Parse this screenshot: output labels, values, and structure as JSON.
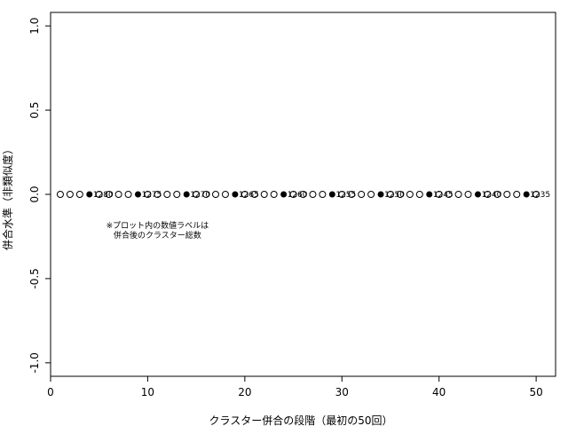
{
  "chart_data": {
    "type": "scatter",
    "title": "",
    "xlabel": "クラスター併合の段階（最初の50回）",
    "ylabel": "併合水準（非類似度）",
    "xlim": [
      0,
      52
    ],
    "ylim": [
      -1.08,
      1.08
    ],
    "xticks": [
      "0",
      "10",
      "20",
      "30",
      "40",
      "50"
    ],
    "yticks": [
      "-1.0",
      "-0.5",
      "0.0",
      "0.5",
      "1.0"
    ],
    "grid": false,
    "points": [
      {
        "x": 1,
        "y": 0,
        "filled": false
      },
      {
        "x": 2,
        "y": 0,
        "filled": false
      },
      {
        "x": 3,
        "y": 0,
        "filled": false
      },
      {
        "x": 4,
        "y": 0,
        "filled": true,
        "label": "1280"
      },
      {
        "x": 5,
        "y": 0,
        "filled": false
      },
      {
        "x": 6,
        "y": 0,
        "filled": false
      },
      {
        "x": 7,
        "y": 0,
        "filled": false
      },
      {
        "x": 8,
        "y": 0,
        "filled": false
      },
      {
        "x": 9,
        "y": 0,
        "filled": true,
        "label": "1275"
      },
      {
        "x": 10,
        "y": 0,
        "filled": false
      },
      {
        "x": 11,
        "y": 0,
        "filled": false
      },
      {
        "x": 12,
        "y": 0,
        "filled": false
      },
      {
        "x": 13,
        "y": 0,
        "filled": false
      },
      {
        "x": 14,
        "y": 0,
        "filled": true,
        "label": "1270"
      },
      {
        "x": 15,
        "y": 0,
        "filled": false
      },
      {
        "x": 16,
        "y": 0,
        "filled": false
      },
      {
        "x": 17,
        "y": 0,
        "filled": false
      },
      {
        "x": 18,
        "y": 0,
        "filled": false
      },
      {
        "x": 19,
        "y": 0,
        "filled": true,
        "label": "1265"
      },
      {
        "x": 20,
        "y": 0,
        "filled": false
      },
      {
        "x": 21,
        "y": 0,
        "filled": false
      },
      {
        "x": 22,
        "y": 0,
        "filled": false
      },
      {
        "x": 23,
        "y": 0,
        "filled": false
      },
      {
        "x": 24,
        "y": 0,
        "filled": true,
        "label": "1260"
      },
      {
        "x": 25,
        "y": 0,
        "filled": false
      },
      {
        "x": 26,
        "y": 0,
        "filled": false
      },
      {
        "x": 27,
        "y": 0,
        "filled": false
      },
      {
        "x": 28,
        "y": 0,
        "filled": false
      },
      {
        "x": 29,
        "y": 0,
        "filled": true,
        "label": "1255"
      },
      {
        "x": 30,
        "y": 0,
        "filled": false
      },
      {
        "x": 31,
        "y": 0,
        "filled": false
      },
      {
        "x": 32,
        "y": 0,
        "filled": false
      },
      {
        "x": 33,
        "y": 0,
        "filled": false
      },
      {
        "x": 34,
        "y": 0,
        "filled": true,
        "label": "1250"
      },
      {
        "x": 35,
        "y": 0,
        "filled": false
      },
      {
        "x": 36,
        "y": 0,
        "filled": false
      },
      {
        "x": 37,
        "y": 0,
        "filled": false
      },
      {
        "x": 38,
        "y": 0,
        "filled": false
      },
      {
        "x": 39,
        "y": 0,
        "filled": true,
        "label": "1245"
      },
      {
        "x": 40,
        "y": 0,
        "filled": false
      },
      {
        "x": 41,
        "y": 0,
        "filled": false
      },
      {
        "x": 42,
        "y": 0,
        "filled": false
      },
      {
        "x": 43,
        "y": 0,
        "filled": false
      },
      {
        "x": 44,
        "y": 0,
        "filled": true,
        "label": "1240"
      },
      {
        "x": 45,
        "y": 0,
        "filled": false
      },
      {
        "x": 46,
        "y": 0,
        "filled": false
      },
      {
        "x": 47,
        "y": 0,
        "filled": false
      },
      {
        "x": 48,
        "y": 0,
        "filled": false
      },
      {
        "x": 49,
        "y": 0,
        "filled": true,
        "label": "1235"
      },
      {
        "x": 50,
        "y": 0,
        "filled": false
      }
    ],
    "annotation": {
      "x": 11,
      "y": -0.2,
      "lines": [
        "※プロット内の数値ラベルは",
        "併合後のクラスター総数"
      ]
    }
  }
}
